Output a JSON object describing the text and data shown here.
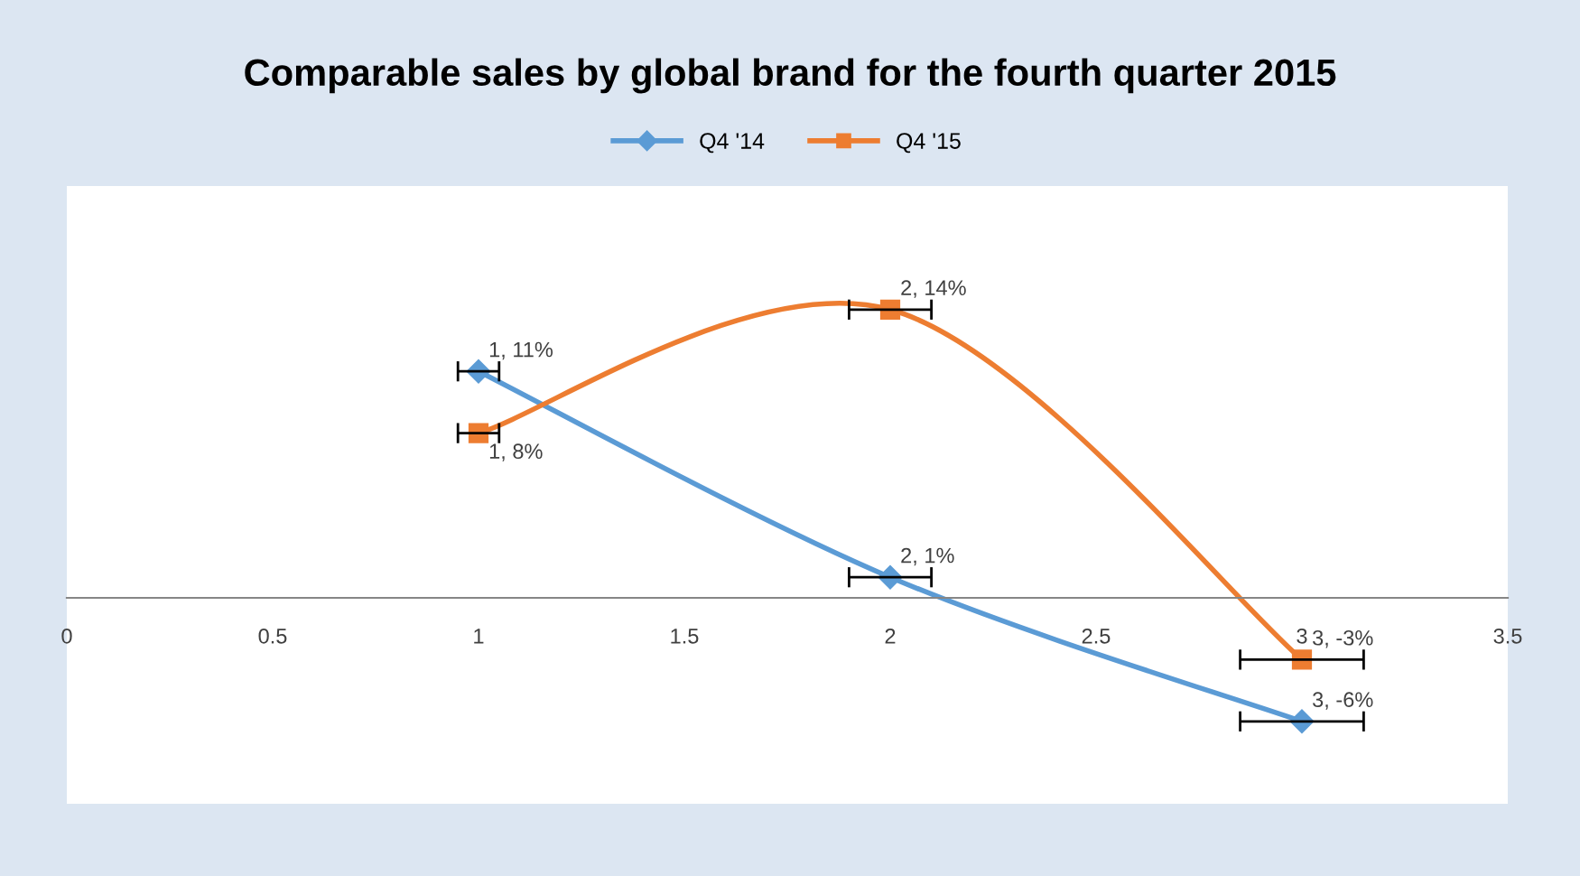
{
  "chart_data": {
    "type": "line",
    "title": "Comparable sales by global brand for the fourth quarter 2015",
    "xlim": [
      0,
      3.5
    ],
    "xticks": [
      0,
      0.5,
      1,
      1.5,
      2,
      2.5,
      3,
      3.5
    ],
    "ylim": [
      -10,
      20
    ],
    "tick_labels": "x",
    "grid": false,
    "legend": "top",
    "line_style": "solid",
    "series": [
      {
        "name": "Q4 '14",
        "color": "#5b9bd5",
        "marker": "diamond",
        "x": [
          1,
          2,
          3
        ],
        "values": [
          11,
          1,
          -6
        ],
        "xerrors": [
          0.05,
          0.1,
          0.15
        ],
        "value_labels": [
          "1, 11%",
          "2, 1%",
          "3, -6%"
        ]
      },
      {
        "name": "Q4 '15",
        "color": "#ed7d31",
        "marker": "square",
        "x": [
          1,
          2,
          3
        ],
        "values": [
          8,
          14,
          -3
        ],
        "xerrors": [
          0.05,
          0.1,
          0.15
        ],
        "value_labels": [
          "1, 8%",
          "2, 14%",
          "3, -3%"
        ]
      }
    ]
  }
}
